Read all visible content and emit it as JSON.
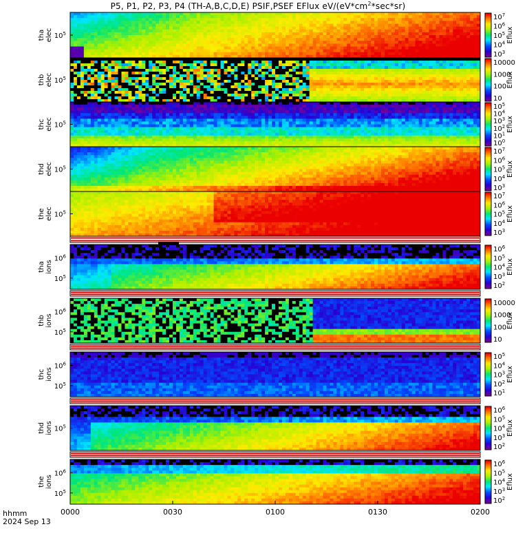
{
  "title": {
    "prefix": "P5, P1, P2, P3, P4 (TH-A,B,C,D,E) PSIF,PSEF EFlux eV/(eV*cm",
    "sup1": "2",
    "suffix": "*sec*sr)"
  },
  "footer": {
    "line1": "hhmm",
    "line2": "2024 Sep 13"
  },
  "chart_data": {
    "type": "heatmap",
    "x_ticks": [
      "0000",
      "0030",
      "0100",
      "0130",
      "0200"
    ],
    "x_range_minutes": [
      0,
      120
    ],
    "colorbar_label": "Eflux",
    "panels": [
      {
        "probe": "tha",
        "species": "elec",
        "y_label_1": "tha",
        "y_label_2": "elec",
        "y_ticks": [
          "10^5"
        ],
        "colorbar_ticks": [
          "10^7",
          "10^6",
          "10^5",
          "10^4",
          "10^3"
        ],
        "pattern": "elec_a"
      },
      {
        "probe": "thb",
        "species": "elec",
        "y_label_1": "thb",
        "y_label_2": "elec",
        "y_ticks": [
          "10^5"
        ],
        "colorbar_ticks": [
          "10000",
          "1000",
          "100",
          "10"
        ],
        "pattern": "elec_b_noisy"
      },
      {
        "probe": "thc",
        "species": "elec",
        "y_label_1": "thc",
        "y_label_2": "elec",
        "y_ticks": [
          "10^5"
        ],
        "colorbar_ticks": [
          "10^5",
          "10^4",
          "10^3",
          "10^2",
          "10^1",
          "10^0"
        ],
        "pattern": "elec_c_bands"
      },
      {
        "probe": "thd",
        "species": "elec",
        "y_label_1": "thd",
        "y_label_2": "elec",
        "y_ticks": [
          "10^5"
        ],
        "colorbar_ticks": [
          "10^7",
          "10^6",
          "10^5",
          "10^4",
          "10^3"
        ],
        "pattern": "elec_d"
      },
      {
        "probe": "the",
        "species": "elec",
        "y_label_1": "the",
        "y_label_2": "elec",
        "y_ticks": [
          "10^5"
        ],
        "colorbar_ticks": [
          "10^7",
          "10^6",
          "10^5",
          "10^4",
          "10^3"
        ],
        "pattern": "elec_e_hot"
      },
      {
        "probe": "tha",
        "species": "ions",
        "y_label_1": "tha",
        "y_label_2": "ions",
        "y_ticks": [
          "10^6",
          "10^5"
        ],
        "colorbar_ticks": [
          "10^6",
          "10^5",
          "10^4",
          "10^3",
          "10^2"
        ],
        "pattern": "ions_a"
      },
      {
        "probe": "thb",
        "species": "ions",
        "y_label_1": "thb",
        "y_label_2": "ions",
        "y_ticks": [
          "10^6",
          "10^5"
        ],
        "colorbar_ticks": [
          "10000",
          "1000",
          "100",
          "10"
        ],
        "pattern": "ions_b_noisy"
      },
      {
        "probe": "thc",
        "species": "ions",
        "y_label_1": "thc",
        "y_label_2": "ions",
        "y_ticks": [
          "10^6",
          "10^5"
        ],
        "colorbar_ticks": [
          "10^5",
          "10^4",
          "10^3",
          "10^2",
          "10^1"
        ],
        "pattern": "ions_c_blue"
      },
      {
        "probe": "thd",
        "species": "ions",
        "y_label_1": "thd",
        "y_label_2": "ions",
        "y_ticks": [
          "10^5"
        ],
        "colorbar_ticks": [
          "10^6",
          "10^5",
          "10^4",
          "10^3",
          "10^2"
        ],
        "pattern": "ions_d"
      },
      {
        "probe": "the",
        "species": "ions",
        "y_label_1": "the",
        "y_label_2": "ions",
        "y_ticks": [
          "10^6",
          "10^5"
        ],
        "colorbar_ticks": [
          "10^6",
          "10^5",
          "10^4",
          "10^3",
          "10^2"
        ],
        "pattern": "ions_e"
      }
    ]
  }
}
